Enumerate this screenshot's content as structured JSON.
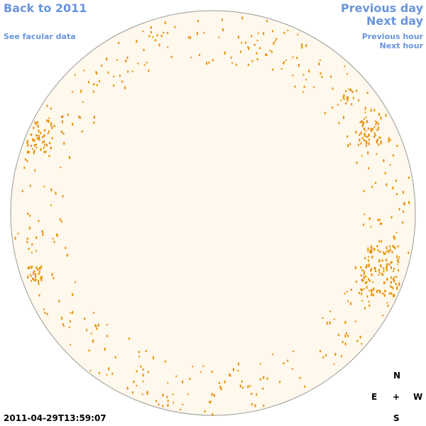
{
  "links": {
    "back_year": "Back to 2011",
    "facular_data": "See facular data",
    "previous_day": "Previous day",
    "next_day": "Next day",
    "previous_hour": "Previous hour",
    "next_hour": "Next hour"
  },
  "timestamp": "2011-04-29T13:59:07",
  "compass": {
    "north": "N",
    "east": "E",
    "center": "+",
    "west": "W",
    "south": "S"
  }
}
